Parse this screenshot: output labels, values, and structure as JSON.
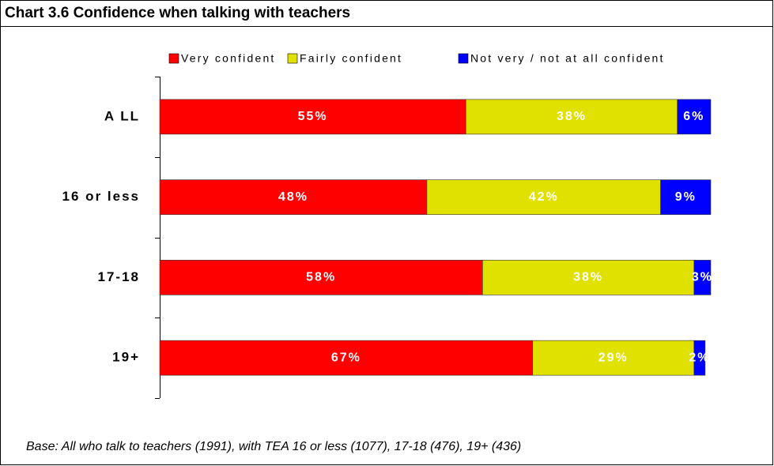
{
  "chart_data": {
    "type": "bar",
    "orientation": "horizontal",
    "stacked": true,
    "title": "Chart 3.6 Confidence when talking with teachers",
    "categories": [
      "A LL",
      "16 or less",
      "17-18",
      "19+"
    ],
    "series": [
      {
        "name": "Very confident",
        "color": "#ff0000",
        "values": [
          55,
          48,
          58,
          67
        ],
        "value_labels": [
          "55%",
          "48%",
          "58%",
          "67%"
        ]
      },
      {
        "name": "Fairly confident",
        "color": "#e1e100",
        "values": [
          38,
          42,
          38,
          29
        ],
        "value_labels": [
          "38%",
          "42%",
          "38%",
          "29%"
        ]
      },
      {
        "name": "Not very / not at all confident",
        "color": "#0000ff",
        "values": [
          6,
          9,
          3,
          2
        ],
        "value_labels": [
          "6%",
          "9%",
          "3%",
          "2%"
        ]
      }
    ],
    "legend": "top",
    "note": "Base: All who talk to teachers (1991), with TEA 16 or less (1077), 17-18 (476), 19+  (436)"
  }
}
